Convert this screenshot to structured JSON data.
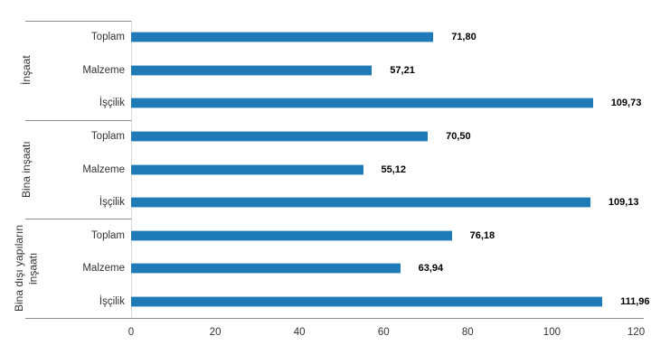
{
  "chart_data": {
    "type": "bar",
    "orientation": "horizontal",
    "title": "",
    "xlabel": "",
    "ylabel": "",
    "xlim": [
      0,
      120
    ],
    "x_ticks": [
      0,
      20,
      40,
      60,
      80,
      100,
      120
    ],
    "grid": false,
    "legend": false,
    "bar_color": "#1f7ab8",
    "bar_edge_color": "#a7cae0",
    "groups": [
      {
        "label": "İnşaat",
        "rows": [
          {
            "category": "Toplam",
            "value": 71.8,
            "value_label": "71,80"
          },
          {
            "category": "Malzeme",
            "value": 57.21,
            "value_label": "57,21"
          },
          {
            "category": "İşçilik",
            "value": 109.73,
            "value_label": "109,73"
          }
        ]
      },
      {
        "label": "Bina inşaatı",
        "rows": [
          {
            "category": "Toplam",
            "value": 70.5,
            "value_label": "70,50"
          },
          {
            "category": "Malzeme",
            "value": 55.12,
            "value_label": "55,12"
          },
          {
            "category": "İşçilik",
            "value": 109.13,
            "value_label": "109,13"
          }
        ]
      },
      {
        "label": "Bina dışı yapıların inşaatı",
        "rows": [
          {
            "category": "Toplam",
            "value": 76.18,
            "value_label": "76,18"
          },
          {
            "category": "Malzeme",
            "value": 63.94,
            "value_label": "63,94"
          },
          {
            "category": "İşçilik",
            "value": 111.96,
            "value_label": "111,96"
          }
        ]
      }
    ]
  },
  "colors": {
    "background": "#ffffff",
    "separator_line": "#8c8c8c",
    "plot_edge_line": "#d9d9d9",
    "text": "#333333",
    "value_text": "#000000"
  }
}
